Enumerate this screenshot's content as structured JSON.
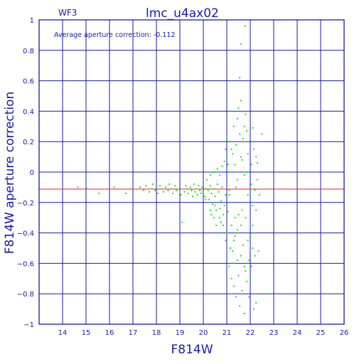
{
  "chart_data": {
    "type": "scatter",
    "title": "lmc_u4ax02",
    "tag": "WF3",
    "annotation": "Average aperture correction: -0.112",
    "xlabel": "F814W",
    "ylabel": "F814W aperture correction",
    "xlim": [
      13,
      26
    ],
    "ylim": [
      -1,
      1
    ],
    "xticks": [
      14,
      15,
      16,
      17,
      18,
      19,
      20,
      21,
      22,
      23,
      24,
      25,
      26
    ],
    "yticks": [
      -1,
      -0.8,
      -0.6,
      -0.4,
      -0.2,
      0,
      0.2,
      0.4,
      0.6,
      0.8,
      1
    ],
    "ytick_labels": [
      "−1",
      "−0.8",
      "−0.6",
      "−0.4",
      "−0.2",
      "0",
      "0.2",
      "0.4",
      "0.6",
      "0.8",
      "1"
    ],
    "grid": true,
    "reference_line": {
      "y": -0.112,
      "color": "#e8201c"
    },
    "colors": {
      "axes": "#1a1aa8",
      "points": "#22e01c",
      "reference": "#e8201c"
    },
    "series": [
      {
        "points": [
          [
            14.65,
            -0.1
          ],
          [
            15.05,
            -0.11
          ],
          [
            15.55,
            -0.14
          ],
          [
            16.2,
            -0.1
          ],
          [
            16.7,
            -0.14
          ],
          [
            16.9,
            -0.11
          ],
          [
            17.3,
            -0.1
          ],
          [
            17.45,
            -0.12
          ],
          [
            17.55,
            -0.09
          ],
          [
            17.7,
            -0.13
          ],
          [
            17.8,
            -0.11
          ],
          [
            17.85,
            -0.08
          ],
          [
            17.95,
            -0.12
          ],
          [
            18.0,
            -0.1
          ],
          [
            18.05,
            -0.14
          ],
          [
            18.15,
            -0.09
          ],
          [
            18.25,
            -0.11
          ],
          [
            18.3,
            -0.13
          ],
          [
            18.4,
            -0.1
          ],
          [
            18.5,
            -0.12
          ],
          [
            18.55,
            -0.08
          ],
          [
            18.65,
            -0.11
          ],
          [
            18.7,
            -0.14
          ],
          [
            18.8,
            -0.09
          ],
          [
            18.85,
            -0.12
          ],
          [
            19.0,
            -0.1
          ],
          [
            19.05,
            -0.15
          ],
          [
            19.1,
            -0.33
          ],
          [
            19.2,
            -0.13
          ],
          [
            19.25,
            -0.09
          ],
          [
            19.3,
            -0.11
          ],
          [
            19.35,
            -0.14
          ],
          [
            19.45,
            -0.1
          ],
          [
            19.5,
            -0.12
          ],
          [
            19.55,
            -0.16
          ],
          [
            19.6,
            -0.08
          ],
          [
            19.65,
            -0.13
          ],
          [
            19.7,
            -0.11
          ],
          [
            19.75,
            -0.15
          ],
          [
            19.8,
            -0.09
          ],
          [
            19.85,
            -0.12
          ],
          [
            19.9,
            -0.14
          ],
          [
            19.95,
            -0.1
          ],
          [
            20.0,
            -0.13
          ],
          [
            20.05,
            -0.16
          ],
          [
            20.1,
            -0.11
          ],
          [
            20.15,
            -0.05
          ],
          [
            20.2,
            -0.12
          ],
          [
            20.25,
            -0.18
          ],
          [
            20.3,
            -0.09
          ],
          [
            20.35,
            -0.14
          ],
          [
            20.4,
            -0.21
          ],
          [
            20.45,
            -0.11
          ],
          [
            20.5,
            -0.16
          ],
          [
            20.55,
            -0.25
          ],
          [
            20.6,
            -0.08
          ],
          [
            20.65,
            -0.13
          ],
          [
            20.7,
            -0.3
          ],
          [
            20.75,
            -0.19
          ],
          [
            20.8,
            -0.1
          ],
          [
            20.85,
            -0.35
          ],
          [
            20.9,
            -0.22
          ],
          [
            20.95,
            -0.15
          ],
          [
            21.0,
            -0.4
          ],
          [
            21.05,
            -0.26
          ],
          [
            21.1,
            -0.12
          ],
          [
            20.5,
            0.0
          ],
          [
            20.6,
            0.02
          ],
          [
            20.7,
            -0.02
          ],
          [
            20.8,
            0.04
          ],
          [
            20.9,
            0.07
          ],
          [
            21.0,
            0.1
          ],
          [
            20.95,
            0.15
          ],
          [
            21.0,
            0.21
          ],
          [
            21.05,
            0.05
          ],
          [
            20.3,
            -0.02
          ],
          [
            20.4,
            0.0
          ],
          [
            20.35,
            -0.28
          ],
          [
            20.45,
            -0.3
          ],
          [
            20.55,
            -0.35
          ],
          [
            20.65,
            -0.4
          ],
          [
            20.75,
            -0.33
          ],
          [
            20.85,
            -0.28
          ],
          [
            20.95,
            -0.45
          ],
          [
            20.7,
            -0.24
          ],
          [
            20.6,
            -0.2
          ],
          [
            20.5,
            -0.22
          ],
          [
            20.3,
            -0.25
          ],
          [
            20.2,
            -0.2
          ],
          [
            20.1,
            -0.18
          ],
          [
            21.15,
            -0.5
          ],
          [
            21.2,
            -0.2
          ],
          [
            21.25,
            0.12
          ],
          [
            21.3,
            -0.6
          ],
          [
            21.35,
            -0.3
          ],
          [
            21.4,
            0.18
          ],
          [
            21.45,
            -0.05
          ],
          [
            21.5,
            -0.4
          ],
          [
            21.55,
            0.25
          ],
          [
            21.6,
            -0.55
          ],
          [
            21.65,
            0.08
          ],
          [
            21.7,
            -0.2
          ],
          [
            21.75,
            0.3
          ],
          [
            21.8,
            -0.65
          ],
          [
            21.85,
            0.0
          ],
          [
            21.9,
            -0.45
          ],
          [
            21.95,
            0.2
          ],
          [
            22.0,
            -0.7
          ],
          [
            22.05,
            0.05
          ],
          [
            22.1,
            -0.35
          ],
          [
            22.15,
            0.15
          ],
          [
            22.2,
            -0.55
          ],
          [
            22.25,
            -0.25
          ],
          [
            22.3,
            -0.05
          ],
          [
            21.2,
            -0.7
          ],
          [
            21.3,
            -0.75
          ],
          [
            21.4,
            -0.82
          ],
          [
            21.5,
            -0.68
          ],
          [
            21.55,
            -0.88
          ],
          [
            21.65,
            -0.78
          ],
          [
            21.75,
            -0.93
          ],
          [
            21.85,
            -0.72
          ],
          [
            21.95,
            -0.82
          ],
          [
            22.05,
            -0.62
          ],
          [
            22.15,
            -0.9
          ],
          [
            22.25,
            -0.86
          ],
          [
            21.3,
            0.3
          ],
          [
            21.45,
            0.35
          ],
          [
            21.5,
            0.42
          ],
          [
            21.6,
            0.47
          ],
          [
            21.7,
            0.22
          ],
          [
            21.8,
            0.38
          ],
          [
            21.85,
            0.27
          ],
          [
            22.0,
            0.53
          ],
          [
            22.1,
            0.29
          ],
          [
            21.55,
            0.62
          ],
          [
            21.6,
            0.84
          ],
          [
            21.78,
            0.96
          ],
          [
            21.1,
            -0.15
          ],
          [
            21.2,
            -0.35
          ],
          [
            21.3,
            -0.45
          ],
          [
            21.4,
            -0.1
          ],
          [
            21.5,
            -0.28
          ],
          [
            21.6,
            -0.35
          ],
          [
            21.7,
            -0.48
          ],
          [
            21.8,
            -0.3
          ],
          [
            21.9,
            -0.15
          ],
          [
            22.0,
            -0.42
          ],
          [
            22.1,
            -0.5
          ],
          [
            22.2,
            -0.12
          ],
          [
            21.15,
            0.0
          ],
          [
            21.35,
            0.05
          ],
          [
            21.45,
            -0.58
          ],
          [
            21.6,
            0.1
          ],
          [
            21.75,
            -0.02
          ],
          [
            21.9,
            0.12
          ],
          [
            22.05,
            -0.08
          ],
          [
            22.2,
            -0.4
          ],
          [
            22.3,
            0.06
          ],
          [
            22.4,
            -0.15
          ],
          [
            22.5,
            0.25
          ],
          [
            22.35,
            -0.52
          ],
          [
            21.0,
            -0.55
          ],
          [
            21.1,
            -0.62
          ],
          [
            21.25,
            -0.52
          ],
          [
            21.35,
            -0.42
          ],
          [
            21.45,
            -0.38
          ],
          [
            21.65,
            -0.25
          ],
          [
            21.75,
            -0.62
          ],
          [
            21.95,
            -0.58
          ],
          [
            22.1,
            -0.22
          ],
          [
            22.25,
            0.1
          ],
          [
            21.05,
            0.2
          ],
          [
            21.2,
            0.15
          ]
        ]
      }
    ]
  }
}
